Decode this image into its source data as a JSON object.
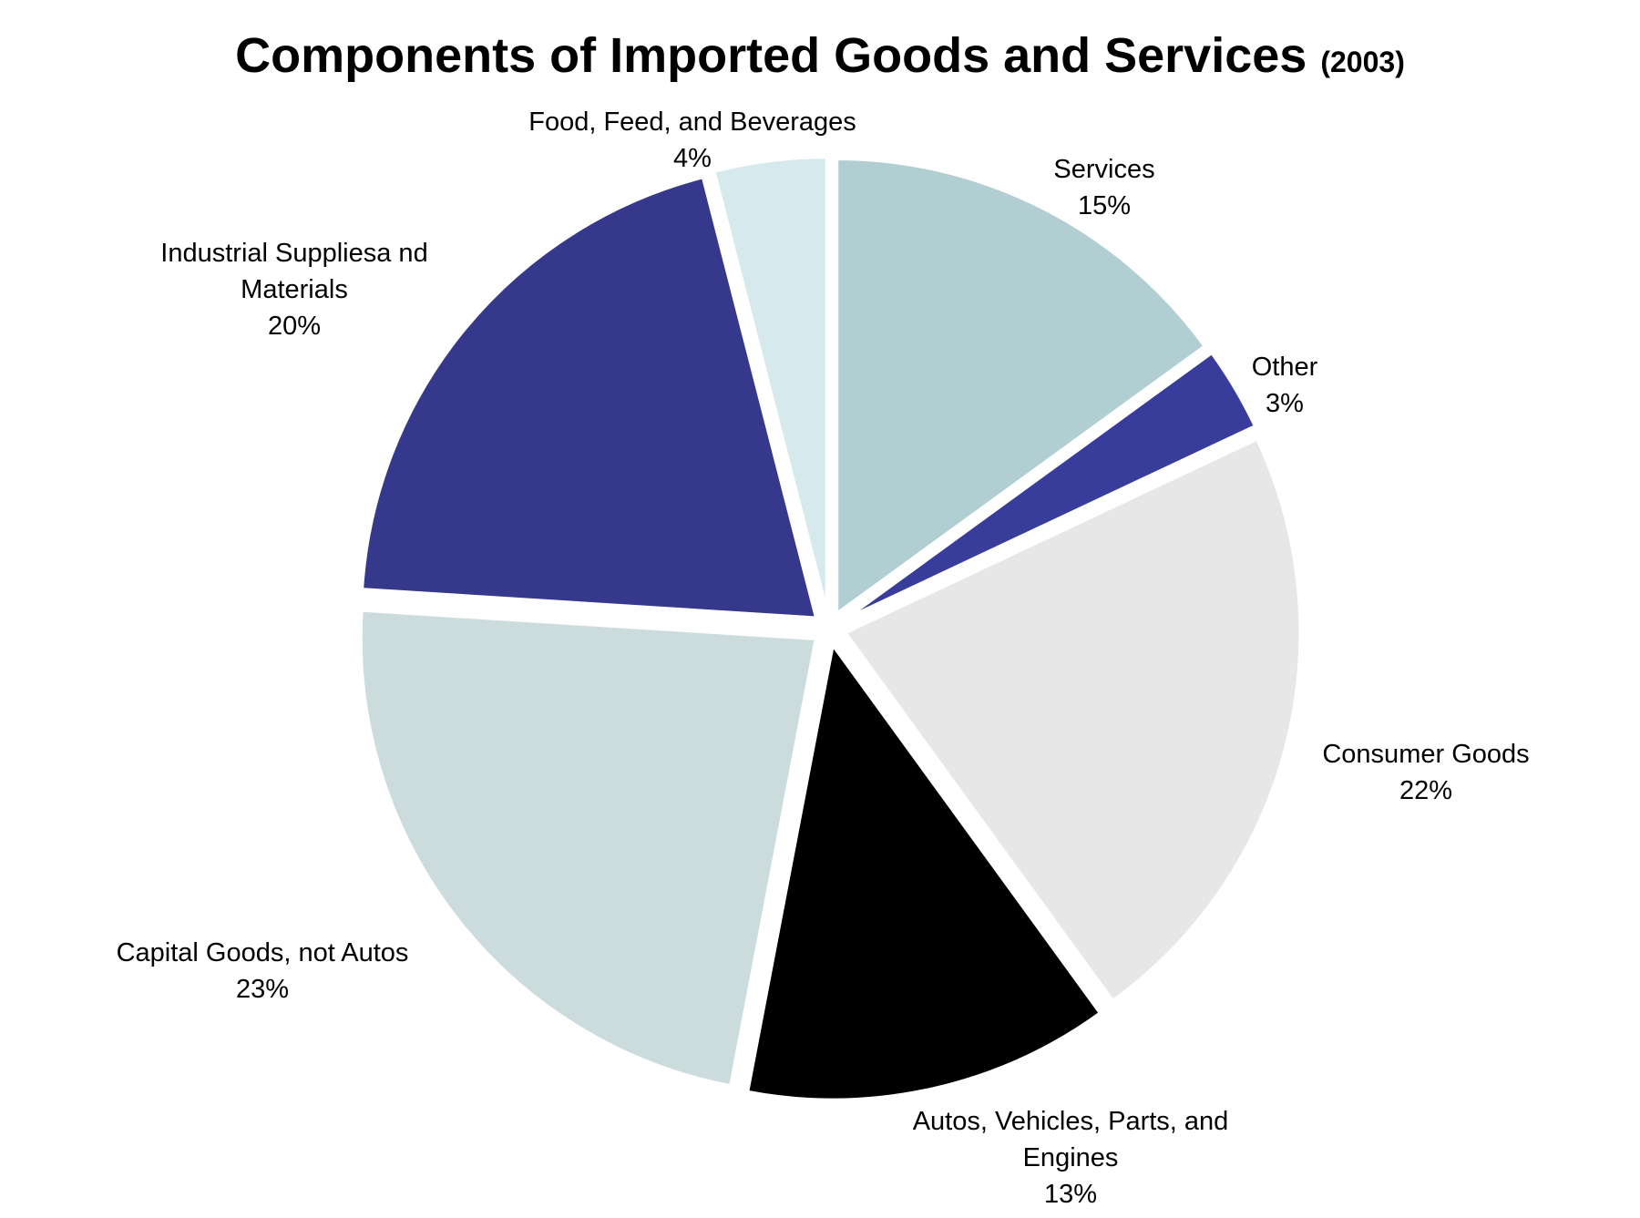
{
  "chart_data": {
    "type": "pie",
    "title": "Components of Imported Goods and Services",
    "title_suffix": "(2003)",
    "slices": [
      {
        "name": "Services",
        "value": 15,
        "value_label": "15%",
        "color": "#b1cfd3"
      },
      {
        "name": "Other",
        "value": 3,
        "value_label": "3%",
        "color": "#383c9b"
      },
      {
        "name": "Consumer Goods",
        "value": 22,
        "value_label": "22%",
        "color": "#e7e7e7"
      },
      {
        "name": "Autos, Vehicles, Parts, and Engines",
        "value": 13,
        "value_label": "13%",
        "color": "#000000"
      },
      {
        "name": "Capital Goods, not Autos",
        "value": 23,
        "value_label": "23%",
        "color": "#ccdbdc"
      },
      {
        "name": "Industrial Suppliesa nd Materials",
        "value": 20,
        "value_label": "20%",
        "color": "#35388b"
      },
      {
        "name": "Food, Feed, and Beverages",
        "value": 4,
        "value_label": "4%",
        "color": "#d6eaee"
      }
    ],
    "label_lines": [
      [
        "Services"
      ],
      [
        "Other"
      ],
      [
        "Consumer Goods"
      ],
      [
        "Autos, Vehicles, Parts, and",
        "Engines"
      ],
      [
        "Capital Goods, not Autos"
      ],
      [
        "Industrial Suppliesa nd",
        "Materials"
      ],
      [
        "Food, Feed, and Beverages"
      ]
    ],
    "start": "12 o'clock",
    "direction": "clockwise",
    "exploded": true,
    "legend": "none"
  }
}
